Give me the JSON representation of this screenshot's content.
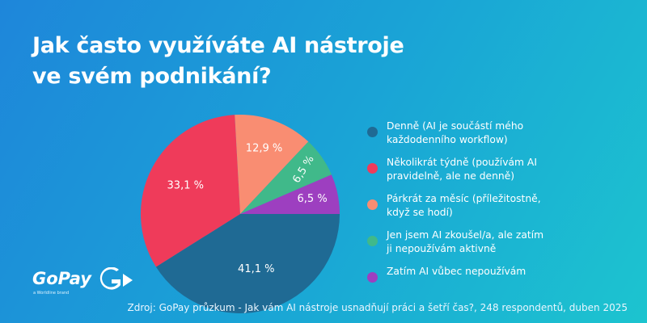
{
  "title_lines": [
    "Jak často využíváte AI nástroje",
    "ve svém podnikání?"
  ],
  "logo": {
    "text": "GoPay",
    "tagline": "a Worldline brand",
    "mark_icon": "gopay-g-arrow-icon"
  },
  "source": "Zdroj: GoPay průzkum - Jak vám AI nástroje usnadňují práci a šetří čas?, 248 respondentů, duben 2025",
  "chart_data": {
    "type": "pie",
    "title": "Jak často využíváte AI nástroje ve svém podnikání?",
    "legend_position": "right",
    "slices": [
      {
        "label": "Denně (AI je součástí mého každodenního workflow)",
        "legend_lines": [
          "Denně (AI je součástí mého",
          "každodenního workflow)"
        ],
        "value": 41.1,
        "display": "41,1 %",
        "color": "#1f6a94"
      },
      {
        "label": "Několikrát týdně (používám AI pravidelně, ale ne denně)",
        "legend_lines": [
          "Několikrát týdně (používám AI",
          "pravidelně, ale ne denně)"
        ],
        "value": 33.1,
        "display": "33,1 %",
        "color": "#ef3b5a"
      },
      {
        "label": "Párkrát za měsíc (příležitostně, když se hodí)",
        "legend_lines": [
          "Párkrát za měsíc (příležitostně,",
          "když se hodí)"
        ],
        "value": 12.9,
        "display": "12,9 %",
        "color": "#f98d72"
      },
      {
        "label": "Jen jsem AI zkoušel/a, ale zatím ji nepoužívám aktivně",
        "legend_lines": [
          "Jen jsem AI zkoušel/a, ale zatím",
          "ji nepoužívám aktivně"
        ],
        "value": 6.5,
        "display": "6,5 %",
        "color": "#40b98a"
      },
      {
        "label": "Zatím AI vůbec nepoužívám",
        "legend_lines": [
          "Zatím AI vůbec nepoužívám"
        ],
        "value": 6.5,
        "display": "6,5 %",
        "color": "#9d3fc0"
      }
    ]
  }
}
